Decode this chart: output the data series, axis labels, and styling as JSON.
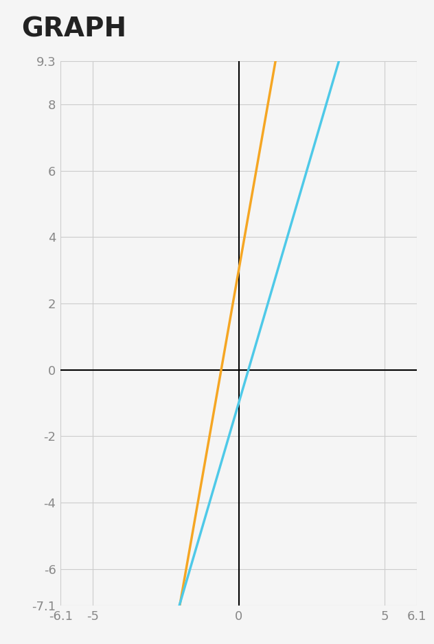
{
  "title": "GRAPH",
  "title_fontsize": 28,
  "title_fontweight": "bold",
  "xlim": [
    -6.1,
    6.1
  ],
  "ylim": [
    -7.1,
    9.3
  ],
  "xticks": [
    -6.1,
    -5,
    0,
    5,
    6.1
  ],
  "yticks": [
    9.3,
    8,
    6,
    4,
    2,
    0,
    -2,
    -4,
    -6,
    -7.1
  ],
  "line1_slope": 5,
  "line1_intercept": 3,
  "line1_color": "#F5A623",
  "line2_slope": 3,
  "line2_intercept": -1,
  "line2_color": "#4EC9E8",
  "line_width": 2.5,
  "background_color": "#f5f5f5",
  "grid_color": "#cccccc",
  "axes_color": "#000000",
  "tick_color": "#888888",
  "tick_fontsize": 13
}
